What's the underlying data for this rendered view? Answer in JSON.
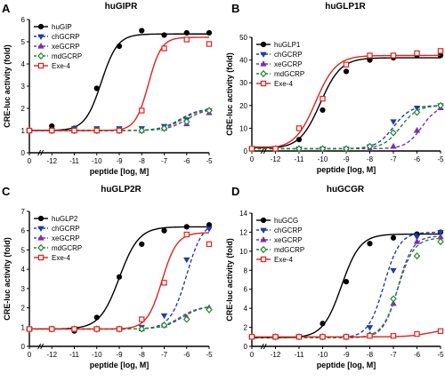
{
  "colors": {
    "black": "#000000",
    "blue": "#1f3ea8",
    "purple": "#7b2fb0",
    "green": "#1f8a2a",
    "red": "#e0231c"
  },
  "chart_data": [
    {
      "type": "scatter",
      "panel_label": "A",
      "title": "huGIPR",
      "xlabel": "peptide [log, M]",
      "ylabel": "CRE-luc activity (fold)",
      "xlim": [
        -13,
        -5
      ],
      "ylim": [
        0,
        6
      ],
      "xticks": [
        0,
        -12,
        -11,
        -10,
        -9,
        -8,
        -7,
        -6,
        -5
      ],
      "xtick_labels": [
        "0",
        "-12",
        "-11",
        "-10",
        "-9",
        "-8",
        "-7",
        "-6",
        "-5"
      ],
      "yticks": [
        0,
        1,
        2,
        3,
        4,
        5,
        6
      ],
      "legend_position": "left",
      "series": [
        {
          "name": "huGIP",
          "color": "black",
          "marker": "circle",
          "dash": "solid",
          "x": [
            -13,
            -12,
            -11,
            -10,
            -9,
            -8,
            -7,
            -6,
            -5
          ],
          "y": [
            1.0,
            1.2,
            1.1,
            2.9,
            4.8,
            5.5,
            5.3,
            5.4,
            5.4
          ],
          "fit": {
            "bottom": 1.0,
            "top": 5.35,
            "ec50": -9.8,
            "hill": 1.2
          }
        },
        {
          "name": "chGCRP",
          "color": "blue",
          "marker": "triangle-down",
          "dash": "dash",
          "x": [
            -13,
            -12,
            -11,
            -10,
            -9,
            -8,
            -7,
            -6,
            -5
          ],
          "y": [
            1.0,
            1.0,
            1.1,
            1.1,
            1.1,
            1.1,
            1.2,
            1.5,
            1.9
          ],
          "fit": {
            "bottom": 1.0,
            "top": 2.0,
            "ec50": -6.3,
            "hill": 1.0
          }
        },
        {
          "name": "xeGCRP",
          "color": "purple",
          "marker": "triangle-up",
          "dash": "dash",
          "x": [
            -13,
            -12,
            -11,
            -10,
            -9,
            -8,
            -7,
            -6,
            -5
          ],
          "y": [
            1.0,
            1.0,
            1.0,
            1.0,
            1.0,
            1.0,
            1.1,
            1.3,
            1.8
          ],
          "fit": {
            "bottom": 1.0,
            "top": 2.0,
            "ec50": -6.0,
            "hill": 1.0
          }
        },
        {
          "name": "mdGCRP",
          "color": "green",
          "marker": "diamond",
          "dash": "dash",
          "x": [
            -13,
            -12,
            -11,
            -10,
            -9,
            -8,
            -7,
            -6,
            -5
          ],
          "y": [
            1.0,
            1.0,
            1.0,
            1.0,
            1.0,
            1.0,
            1.1,
            1.4,
            1.9
          ],
          "fit": {
            "bottom": 1.0,
            "top": 2.0,
            "ec50": -6.2,
            "hill": 1.0
          }
        },
        {
          "name": "Exe-4",
          "color": "red",
          "marker": "square",
          "dash": "solid",
          "x": [
            -13,
            -12,
            -11,
            -10,
            -9,
            -8,
            -7,
            -6,
            -5
          ],
          "y": [
            1.0,
            1.0,
            1.0,
            1.0,
            1.0,
            1.9,
            4.7,
            5.1,
            4.9
          ],
          "fit": {
            "bottom": 1.0,
            "top": 5.2,
            "ec50": -7.7,
            "hill": 1.5
          }
        }
      ]
    },
    {
      "type": "scatter",
      "panel_label": "B",
      "title": "huGLP1R",
      "xlabel": "peptide [log, M]",
      "ylabel": "CRE-luc activity (fold)",
      "xlim": [
        -13,
        -5
      ],
      "ylim": [
        0,
        50
      ],
      "xticks": [
        0,
        -12,
        -11,
        -10,
        -9,
        -8,
        -7,
        -6,
        -5
      ],
      "xtick_labels": [
        "0",
        "-12",
        "-11",
        "-10",
        "-9",
        "-8",
        "-7",
        "-6",
        "-5"
      ],
      "yticks": [
        0,
        10,
        20,
        30,
        40,
        50
      ],
      "legend_position": "left",
      "series": [
        {
          "name": "huGLP1",
          "color": "black",
          "marker": "circle",
          "dash": "solid",
          "x": [
            -13,
            -12,
            -11,
            -10,
            -9,
            -8,
            -7,
            -6,
            -5
          ],
          "y": [
            1,
            1,
            5,
            18,
            35,
            40,
            41,
            42,
            42
          ],
          "fit": {
            "bottom": 1,
            "top": 41,
            "ec50": -10.1,
            "hill": 1.0
          }
        },
        {
          "name": "chGCRP",
          "color": "blue",
          "marker": "triangle-down",
          "dash": "dash",
          "x": [
            -13,
            -12,
            -11,
            -10,
            -9,
            -8,
            -7,
            -6,
            -5
          ],
          "y": [
            1,
            1,
            1,
            1,
            1,
            2,
            13,
            19,
            20
          ],
          "fit": {
            "bottom": 1,
            "top": 20,
            "ec50": -7.0,
            "hill": 1.2
          }
        },
        {
          "name": "xeGCRP",
          "color": "purple",
          "marker": "triangle-up",
          "dash": "dash",
          "x": [
            -13,
            -12,
            -11,
            -10,
            -9,
            -8,
            -7,
            -6,
            -5
          ],
          "y": [
            1,
            1,
            1,
            1,
            1,
            1,
            2,
            9,
            19
          ],
          "fit": {
            "bottom": 1,
            "top": 20,
            "ec50": -5.8,
            "hill": 1.3
          }
        },
        {
          "name": "mdGCRP",
          "color": "green",
          "marker": "diamond",
          "dash": "dash",
          "x": [
            -13,
            -12,
            -11,
            -10,
            -9,
            -8,
            -7,
            -6,
            -5
          ],
          "y": [
            1,
            1,
            1,
            1,
            1,
            2,
            8,
            17,
            20
          ],
          "fit": {
            "bottom": 1,
            "top": 20,
            "ec50": -6.7,
            "hill": 1.2
          }
        },
        {
          "name": "Exe-4",
          "color": "red",
          "marker": "square",
          "dash": "solid",
          "x": [
            -13,
            -12,
            -11,
            -10,
            -9,
            -8,
            -7,
            -6,
            -5
          ],
          "y": [
            1,
            1,
            10,
            23,
            38,
            42,
            42,
            43,
            44
          ],
          "fit": {
            "bottom": 1,
            "top": 42,
            "ec50": -10.3,
            "hill": 1.0
          }
        }
      ]
    },
    {
      "type": "scatter",
      "panel_label": "C",
      "title": "huGLP2R",
      "xlabel": "peptide [log, M]",
      "ylabel": "CRE-luc activity (fold)",
      "xlim": [
        -13,
        -5
      ],
      "ylim": [
        0,
        7
      ],
      "xticks": [
        0,
        -12,
        -11,
        -10,
        -9,
        -8,
        -7,
        -6,
        -5
      ],
      "xtick_labels": [
        "0",
        "-12",
        "-11",
        "-10",
        "-9",
        "-8",
        "-7",
        "-6",
        "-5"
      ],
      "yticks": [
        0,
        1,
        2,
        3,
        4,
        5,
        6,
        7
      ],
      "legend_position": "left",
      "series": [
        {
          "name": "huGLP2",
          "color": "black",
          "marker": "circle",
          "dash": "solid",
          "x": [
            -13,
            -12,
            -11,
            -10,
            -9,
            -8,
            -7,
            -6,
            -5
          ],
          "y": [
            0.9,
            0.9,
            0.8,
            1.5,
            3.6,
            5.3,
            6.0,
            6.2,
            6.3
          ],
          "fit": {
            "bottom": 0.9,
            "top": 6.2,
            "ec50": -9.0,
            "hill": 1.0
          }
        },
        {
          "name": "chGCRP",
          "color": "blue",
          "marker": "triangle-down",
          "dash": "dash",
          "x": [
            -13,
            -12,
            -11,
            -10,
            -9,
            -8,
            -7,
            -6,
            -5
          ],
          "y": [
            0.9,
            0.9,
            0.9,
            0.9,
            0.9,
            1.0,
            1.6,
            4.5,
            6.1
          ],
          "fit": {
            "bottom": 0.9,
            "top": 6.5,
            "ec50": -6.0,
            "hill": 1.2
          }
        },
        {
          "name": "xeGCRP",
          "color": "purple",
          "marker": "triangle-up",
          "dash": "dash",
          "x": [
            -13,
            -12,
            -11,
            -10,
            -9,
            -8,
            -7,
            -6,
            -5
          ],
          "y": [
            0.9,
            0.9,
            0.9,
            0.9,
            0.9,
            0.9,
            1.1,
            1.5,
            2.0
          ],
          "fit": {
            "bottom": 0.9,
            "top": 2.1,
            "ec50": -6.2,
            "hill": 1.0
          }
        },
        {
          "name": "mdGCRP",
          "color": "green",
          "marker": "diamond",
          "dash": "dash",
          "x": [
            -13,
            -12,
            -11,
            -10,
            -9,
            -8,
            -7,
            -6,
            -5
          ],
          "y": [
            0.9,
            0.9,
            0.9,
            0.9,
            0.9,
            0.9,
            1.1,
            1.4,
            1.9
          ],
          "fit": {
            "bottom": 0.9,
            "top": 2.1,
            "ec50": -6.3,
            "hill": 1.0
          }
        },
        {
          "name": "Exe-4",
          "color": "red",
          "marker": "square",
          "dash": "solid",
          "x": [
            -13,
            -12,
            -11,
            -10,
            -9,
            -8,
            -7,
            -6,
            -5
          ],
          "y": [
            0.9,
            0.9,
            0.9,
            0.9,
            0.9,
            1.4,
            3.3,
            5.8,
            5.3
          ],
          "fit": {
            "bottom": 0.9,
            "top": 5.9,
            "ec50": -7.1,
            "hill": 1.3
          }
        }
      ]
    },
    {
      "type": "scatter",
      "panel_label": "D",
      "title": "huGCGR",
      "xlabel": "peptide [log, M]",
      "ylabel": "CRE-luc activity (fold)",
      "xlim": [
        -13,
        -5
      ],
      "ylim": [
        0,
        14
      ],
      "xticks": [
        0,
        -12,
        -11,
        -10,
        -9,
        -8,
        -7,
        -6,
        -5
      ],
      "xtick_labels": [
        "0",
        "-12",
        "-11",
        "-10",
        "-9",
        "-8",
        "-7",
        "-6",
        "-5"
      ],
      "yticks": [
        0,
        2,
        4,
        6,
        8,
        10,
        12,
        14
      ],
      "legend_position": "left",
      "series": [
        {
          "name": "huGCG",
          "color": "black",
          "marker": "circle",
          "dash": "solid",
          "x": [
            -13,
            -12,
            -11,
            -10,
            -9,
            -8,
            -7,
            -6,
            -5
          ],
          "y": [
            1,
            1,
            1,
            2.4,
            6.8,
            10.8,
            11.4,
            11.8,
            12.0
          ],
          "fit": {
            "bottom": 0.9,
            "top": 11.8,
            "ec50": -9.2,
            "hill": 1.1
          }
        },
        {
          "name": "chGCRP",
          "color": "blue",
          "marker": "triangle-down",
          "dash": "dash",
          "x": [
            -13,
            -12,
            -11,
            -10,
            -9,
            -8,
            -7,
            -6,
            -5
          ],
          "y": [
            1,
            1,
            1,
            1,
            1,
            2,
            8,
            11.5,
            12
          ],
          "fit": {
            "bottom": 0.9,
            "top": 12,
            "ec50": -7.4,
            "hill": 1.3
          }
        },
        {
          "name": "xeGCRP",
          "color": "purple",
          "marker": "triangle-up",
          "dash": "dash",
          "x": [
            -13,
            -12,
            -11,
            -10,
            -9,
            -8,
            -7,
            -6,
            -5
          ],
          "y": [
            1,
            1,
            1,
            1,
            1,
            1.2,
            4.5,
            11,
            11.5
          ],
          "fit": {
            "bottom": 0.9,
            "top": 11.6,
            "ec50": -6.8,
            "hill": 1.4
          }
        },
        {
          "name": "mdGCRP",
          "color": "green",
          "marker": "diamond",
          "dash": "dash",
          "x": [
            -13,
            -12,
            -11,
            -10,
            -9,
            -8,
            -7,
            -6,
            -5
          ],
          "y": [
            1,
            1,
            1,
            1,
            1,
            1.2,
            5,
            9.5,
            11
          ],
          "fit": {
            "bottom": 0.9,
            "top": 11.4,
            "ec50": -6.8,
            "hill": 1.3
          }
        },
        {
          "name": "Exe-4",
          "color": "red",
          "marker": "square",
          "dash": "solid",
          "x": [
            -13,
            -12,
            -11,
            -10,
            -9,
            -8,
            -7,
            -6,
            -5
          ],
          "y": [
            1,
            1,
            1,
            1,
            1,
            1.1,
            1.1,
            1.3,
            1.6
          ],
          "fit": {
            "bottom": 1.0,
            "top": 1.8,
            "ec50": -5.5,
            "hill": 1.0
          }
        }
      ]
    }
  ]
}
